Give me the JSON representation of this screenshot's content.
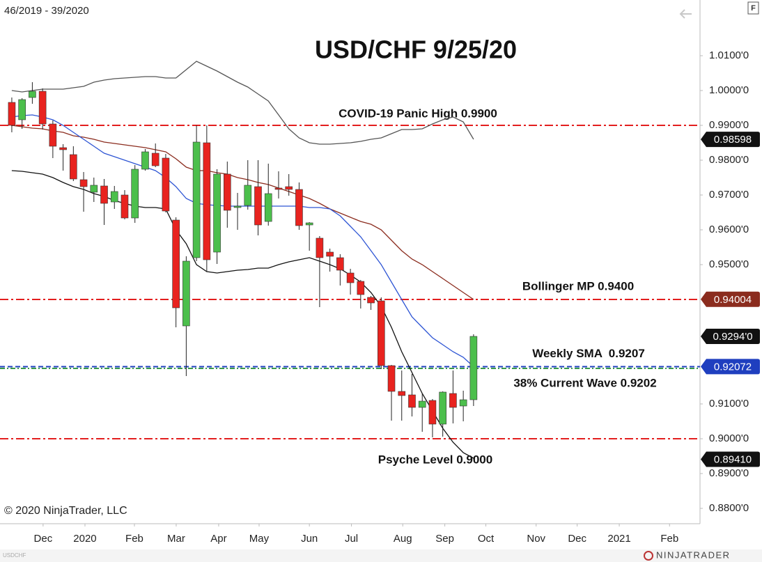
{
  "chart_data": {
    "type": "candlestick",
    "title": "USD/CHF 9/25/20",
    "subtitle": "46/2019 - 39/2020",
    "copyright": "© 2020 NinjaTrader, LLC",
    "symbol": "USDCHF",
    "brand": "NINJATRADER",
    "button": "F",
    "up_color": "#4cbf4c",
    "down_color": "#e8231f",
    "open": [
      0.9966,
      0.9916,
      0.998,
      0.9998,
      0.9904,
      0.9836,
      0.9816,
      0.9744,
      0.9708,
      0.9726,
      0.968,
      0.97,
      0.9634,
      0.9774,
      0.982,
      0.9806,
      0.9628,
      0.9324,
      0.952,
      0.985,
      0.9536,
      0.976,
      0.9664,
      0.967,
      0.9724,
      0.9624,
      0.972,
      0.9724,
      0.9716,
      0.9614,
      0.9576,
      0.9536,
      0.952,
      0.9476,
      0.9452,
      0.9406,
      0.9396,
      0.921,
      0.9136,
      0.9126,
      0.909,
      0.911,
      0.9042,
      0.913,
      0.9094,
      0.9112
    ],
    "high": [
      0.998,
      0.9978,
      1.0024,
      1.0006,
      0.9914,
      0.9846,
      0.984,
      0.9766,
      0.975,
      0.9746,
      0.9726,
      0.9714,
      0.9786,
      0.9832,
      0.9848,
      0.9818,
      0.9636,
      0.9524,
      0.99,
      0.99,
      0.9774,
      0.9796,
      0.9706,
      0.98,
      0.98,
      0.979,
      0.9768,
      0.976,
      0.9736,
      0.9622,
      0.9582,
      0.9546,
      0.953,
      0.9488,
      0.9456,
      0.941,
      0.9406,
      0.9212,
      0.9196,
      0.9186,
      0.913,
      0.9114,
      0.9136,
      0.9196,
      0.9138,
      0.93
    ],
    "low": [
      0.988,
      0.989,
      0.9962,
      0.9888,
      0.9806,
      0.977,
      0.974,
      0.9652,
      0.968,
      0.9614,
      0.966,
      0.963,
      0.962,
      0.977,
      0.978,
      0.965,
      0.932,
      0.918,
      0.951,
      0.948,
      0.9502,
      0.9606,
      0.96,
      0.9658,
      0.9584,
      0.9612,
      0.969,
      0.9698,
      0.96,
      0.954,
      0.9378,
      0.948,
      0.944,
      0.9414,
      0.9374,
      0.937,
      0.92,
      0.9052,
      0.9052,
      0.9064,
      0.902,
      0.9004,
      0.9006,
      0.9044,
      0.905,
      0.9094
    ],
    "close": [
      0.99,
      0.9974,
      0.9998,
      0.9904,
      0.984,
      0.983,
      0.9746,
      0.9724,
      0.9728,
      0.9676,
      0.971,
      0.9634,
      0.9774,
      0.9824,
      0.9784,
      0.9654,
      0.9376,
      0.951,
      0.9852,
      0.9514,
      0.976,
      0.9656,
      0.9668,
      0.9728,
      0.9614,
      0.9704,
      0.9716,
      0.9716,
      0.9612,
      0.962,
      0.952,
      0.9524,
      0.9484,
      0.9448,
      0.9414,
      0.939,
      0.921,
      0.9136,
      0.9124,
      0.909,
      0.9108,
      0.9042,
      0.9134,
      0.909,
      0.9112,
      0.9294
    ],
    "overlays": [
      {
        "color": "#555555",
        "values": [
          1.0,
          0.9996,
          1.0,
          1.0004,
          1.0004,
          1.0004,
          1.0008,
          1.0012,
          1.0024,
          1.003,
          1.0034,
          1.0036,
          1.0038,
          1.004,
          1.004,
          1.0036,
          1.0036,
          1.006,
          1.0084,
          1.007,
          1.0056,
          1.004,
          1.0024,
          1.001,
          0.999,
          0.997,
          0.993,
          0.989,
          0.9864,
          0.985,
          0.9846,
          0.9846,
          0.9848,
          0.985,
          0.9854,
          0.986,
          0.9864,
          0.9876,
          0.9888,
          0.9888,
          0.989,
          0.9904,
          0.9916,
          0.9924,
          0.991,
          0.986
        ]
      },
      {
        "color": "#8b2c1e",
        "values": [
          0.99,
          0.9896,
          0.9892,
          0.989,
          0.9884,
          0.988,
          0.987,
          0.9866,
          0.986,
          0.9852,
          0.9848,
          0.9844,
          0.984,
          0.9836,
          0.983,
          0.9824,
          0.9804,
          0.978,
          0.977,
          0.977,
          0.9764,
          0.976,
          0.975,
          0.9744,
          0.9736,
          0.973,
          0.972,
          0.971,
          0.97,
          0.969,
          0.9676,
          0.966,
          0.9648,
          0.9636,
          0.9624,
          0.9616,
          0.96,
          0.957,
          0.954,
          0.9516,
          0.95,
          0.948,
          0.946,
          0.944,
          0.942,
          0.94
        ]
      },
      {
        "color": "#2e55d4",
        "values": [
          0.9924,
          0.9928,
          0.993,
          0.9924,
          0.9916,
          0.99,
          0.988,
          0.986,
          0.984,
          0.982,
          0.981,
          0.98,
          0.979,
          0.978,
          0.977,
          0.975,
          0.9724,
          0.969,
          0.9676,
          0.9672,
          0.967,
          0.9668,
          0.9668,
          0.9668,
          0.9668,
          0.9668,
          0.9668,
          0.9668,
          0.9668,
          0.9664,
          0.9664,
          0.966,
          0.964,
          0.961,
          0.958,
          0.954,
          0.95,
          0.945,
          0.94,
          0.935,
          0.932,
          0.929,
          0.927,
          0.925,
          0.9234,
          0.9207
        ]
      },
      {
        "color": "#111111",
        "values": [
          0.977,
          0.9768,
          0.9764,
          0.976,
          0.975,
          0.9736,
          0.9724,
          0.9716,
          0.9704,
          0.9696,
          0.9684,
          0.9676,
          0.9668,
          0.9664,
          0.9664,
          0.966,
          0.96,
          0.956,
          0.95,
          0.948,
          0.9476,
          0.948,
          0.9484,
          0.9486,
          0.949,
          0.949,
          0.95,
          0.9508,
          0.9514,
          0.952,
          0.951,
          0.95,
          0.9488,
          0.947,
          0.945,
          0.942,
          0.938,
          0.932,
          0.925,
          0.919,
          0.913,
          0.908,
          0.903,
          0.899,
          0.896,
          0.8944
        ]
      }
    ],
    "levels": [
      {
        "value": 0.99,
        "label": "COVID-19 Panic High 0.9900",
        "color": "#e31e1e"
      },
      {
        "value": 0.94,
        "label": "Bollinger MP 0.9400",
        "color": "#e31e1e"
      },
      {
        "value": 0.9207,
        "label": "Weekly SMA  0.9207",
        "color": "#1f3fbf"
      },
      {
        "value": 0.9202,
        "label": "38% Current Wave 0.9202",
        "color": "#3a9a4a"
      },
      {
        "value": 0.9,
        "label": "Psyche Level 0.9000",
        "color": "#e31e1e"
      }
    ],
    "price_markers": [
      {
        "value": 0.98598,
        "label": "0.98598",
        "color": "#111111"
      },
      {
        "value": 0.94004,
        "label": "0.94004",
        "color": "#8b2c1e"
      },
      {
        "value": 0.9294,
        "label": "0.9294'0",
        "color": "#111111"
      },
      {
        "value": 0.92072,
        "label": "0.92072",
        "color": "#1f3fbf"
      },
      {
        "value": 0.8941,
        "label": "0.89410",
        "color": "#111111"
      }
    ],
    "xlim": [
      -1.15,
      67.07
    ],
    "xticks": [
      {
        "value": 3.05,
        "label": "Dec"
      },
      {
        "value": 7.13,
        "label": "2020"
      },
      {
        "value": 11.95,
        "label": "Feb"
      },
      {
        "value": 16.02,
        "label": "Mar"
      },
      {
        "value": 20.16,
        "label": "Apr"
      },
      {
        "value": 24.1,
        "label": "May"
      },
      {
        "value": 29.0,
        "label": "Jun"
      },
      {
        "value": 33.1,
        "label": "Jul"
      },
      {
        "value": 38.1,
        "label": "Aug"
      },
      {
        "value": 42.2,
        "label": "Sep"
      },
      {
        "value": 46.2,
        "label": "Oct"
      },
      {
        "value": 51.1,
        "label": "Nov"
      },
      {
        "value": 55.1,
        "label": "Dec"
      },
      {
        "value": 59.2,
        "label": "2021"
      },
      {
        "value": 64.1,
        "label": "Feb"
      }
    ],
    "ylim": [
      0.8756,
      1.026
    ],
    "yticks": [
      {
        "value": 1.01,
        "label": "1.0100'0"
      },
      {
        "value": 1.0,
        "label": "1.0000'0"
      },
      {
        "value": 0.99,
        "label": "0.9900'0"
      },
      {
        "value": 0.98,
        "label": "0.9800'0"
      },
      {
        "value": 0.97,
        "label": "0.9700'0"
      },
      {
        "value": 0.96,
        "label": "0.9600'0"
      },
      {
        "value": 0.95,
        "label": "0.9500'0"
      },
      {
        "value": 0.91,
        "label": "0.9100'0"
      },
      {
        "value": 0.9,
        "label": "0.9000'0"
      },
      {
        "value": 0.89,
        "label": "0.8900'0"
      },
      {
        "value": 0.88,
        "label": "0.8800'0"
      }
    ],
    "grid": false
  }
}
